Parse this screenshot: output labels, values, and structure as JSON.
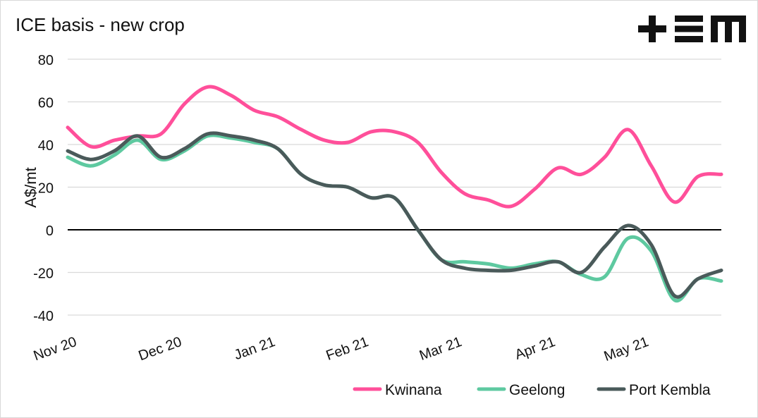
{
  "logo_text": "+EM",
  "chart_data": {
    "type": "line",
    "title": "ICE basis - new crop",
    "ylabel": "A$/mt",
    "xlabel": "",
    "ylim": [
      -40,
      80
    ],
    "yticks": [
      "80",
      "60",
      "40",
      "20",
      "0",
      "-20",
      "-40"
    ],
    "ytick_values": [
      80,
      60,
      40,
      20,
      0,
      -20,
      -40
    ],
    "xtick_labels": [
      "Nov 20",
      "Dec 20",
      "Jan 21",
      "Feb 21",
      "Mar 21",
      "Apr 21",
      "May 21"
    ],
    "xtick_positions": [
      0,
      4.5,
      8.5,
      12.5,
      16.5,
      20.5,
      24.5
    ],
    "x_range": [
      0,
      28
    ],
    "grid": true,
    "legend_position": "bottom-right",
    "series": [
      {
        "name": "Kwinana",
        "color": "#ff4f9a",
        "values": [
          48,
          39,
          42,
          44,
          45,
          59,
          67,
          63,
          56,
          53,
          47,
          42,
          41,
          46,
          46,
          41,
          27,
          17,
          14,
          11,
          19,
          29,
          26,
          34,
          47,
          30,
          13,
          25,
          26
        ]
      },
      {
        "name": "Geelong",
        "color": "#5ec9a0",
        "values": [
          34,
          30,
          35,
          42,
          33,
          37,
          44,
          43,
          41,
          38,
          26,
          21,
          20,
          15,
          15,
          0,
          -14,
          -15,
          -16,
          -18,
          -16,
          -15,
          -21,
          -22,
          -4,
          -10,
          -33,
          -23,
          -24
        ]
      },
      {
        "name": "Port Kembla",
        "color": "#4a5a5a",
        "values": [
          37,
          33,
          37,
          44,
          34,
          38,
          45,
          44,
          42,
          38,
          26,
          21,
          20,
          15,
          15,
          0,
          -14,
          -18,
          -19,
          -19,
          -17,
          -15,
          -20,
          -8,
          2,
          -7,
          -31,
          -23,
          -19
        ]
      }
    ]
  }
}
